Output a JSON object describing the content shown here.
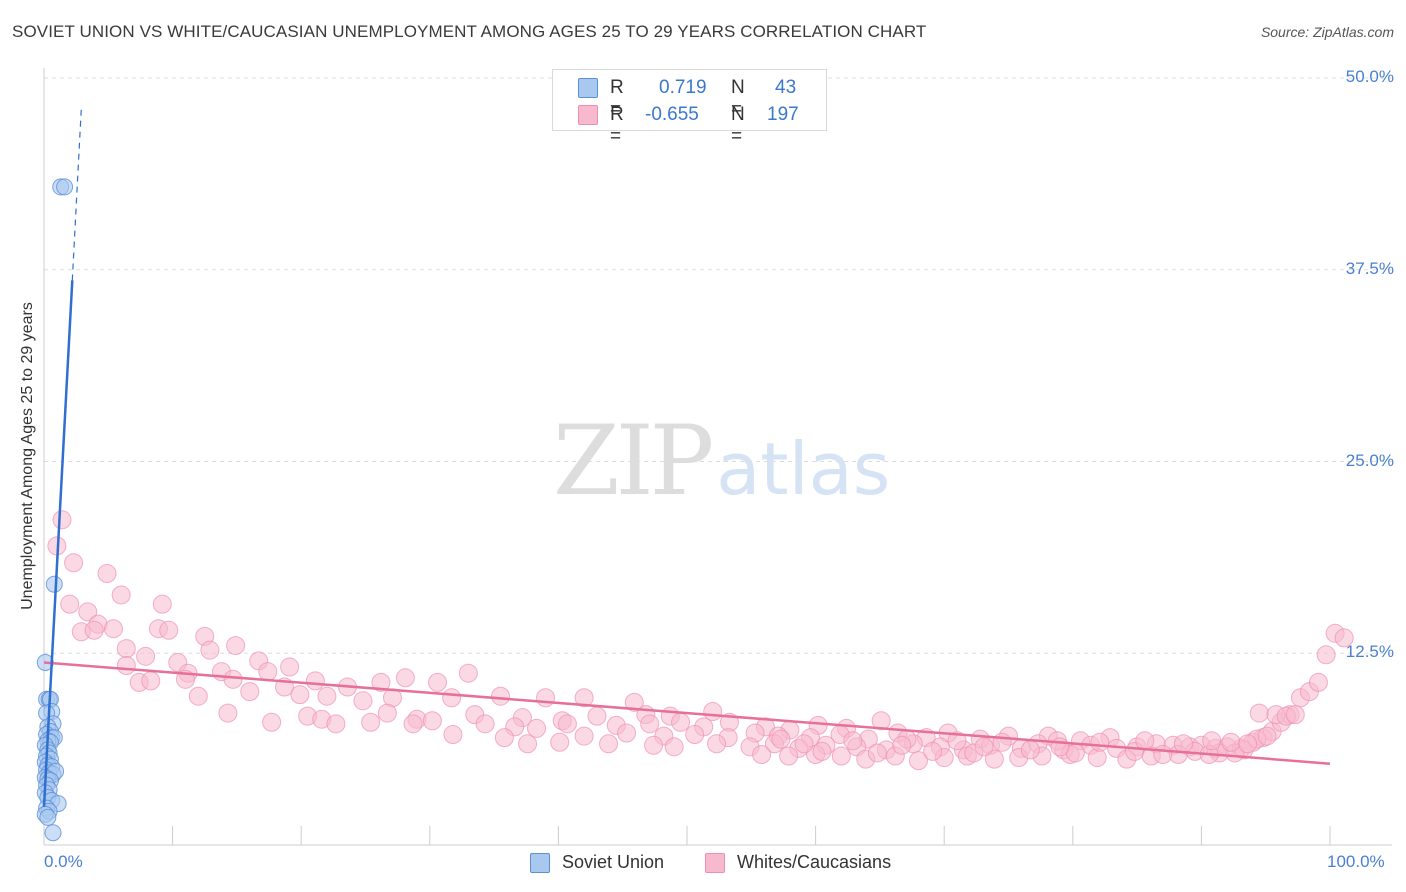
{
  "title": "SOVIET UNION VS WHITE/CAUCASIAN UNEMPLOYMENT AMONG AGES 25 TO 29 YEARS CORRELATION CHART",
  "source": "Source: ZipAtlas.com",
  "watermark": {
    "zip": "ZIP",
    "atlas": "atlas"
  },
  "legend": {
    "r_label": "R =",
    "n_label": "N =",
    "soviet": {
      "r": "0.719",
      "n": "43"
    },
    "white": {
      "r": "-0.655",
      "n": "197"
    }
  },
  "bottom_legend": {
    "soviet": "Soviet Union",
    "white": "Whites/Caucasians"
  },
  "colors": {
    "soviet_fill": "#a9c8f0",
    "soviet_stroke": "#5b8fd6",
    "soviet_line": "#2f6fd0",
    "white_fill": "#f7b9ce",
    "white_stroke": "#ef8fb0",
    "white_line": "#e6709a",
    "tick_text": "#4a7fd0",
    "grid": "#dddddd"
  },
  "chart_data": {
    "type": "scatter",
    "title": "SOVIET UNION VS WHITE/CAUCASIAN UNEMPLOYMENT AMONG AGES 25 TO 29 YEARS CORRELATION CHART",
    "xlabel": "",
    "ylabel": "Unemployment Among Ages 25 to 29 years",
    "xlim": [
      0,
      100
    ],
    "ylim": [
      0,
      50
    ],
    "x_tick_labels": [
      "0.0%",
      "100.0%"
    ],
    "y_ticks": [
      12.5,
      25.0,
      37.5,
      50.0
    ],
    "y_tick_labels": [
      "12.5%",
      "25.0%",
      "37.5%",
      "50.0%"
    ],
    "grid": true,
    "series": [
      {
        "name": "Soviet Union",
        "r": 0.719,
        "n": 43,
        "trend": {
          "x": [
            0.0,
            2.2
          ],
          "y": [
            2.5,
            36.8
          ],
          "dashed_to": [
            2.9,
            48.0
          ]
        },
        "points": [
          [
            1.3,
            42.9
          ],
          [
            1.6,
            42.9
          ],
          [
            0.8,
            17.0
          ],
          [
            0.1,
            11.9
          ],
          [
            0.2,
            9.5
          ],
          [
            0.4,
            9.5
          ],
          [
            0.5,
            9.5
          ],
          [
            0.6,
            8.7
          ],
          [
            0.2,
            8.6
          ],
          [
            0.7,
            7.9
          ],
          [
            0.3,
            7.7
          ],
          [
            0.5,
            7.4
          ],
          [
            0.2,
            7.2
          ],
          [
            0.6,
            7.0
          ],
          [
            0.8,
            7.0
          ],
          [
            0.3,
            6.8
          ],
          [
            0.5,
            6.7
          ],
          [
            0.1,
            6.5
          ],
          [
            0.3,
            6.2
          ],
          [
            0.4,
            6.0
          ],
          [
            0.2,
            5.8
          ],
          [
            0.5,
            5.6
          ],
          [
            0.1,
            5.4
          ],
          [
            0.3,
            5.2
          ],
          [
            0.6,
            5.1
          ],
          [
            0.2,
            4.9
          ],
          [
            0.4,
            4.7
          ],
          [
            0.7,
            4.6
          ],
          [
            0.9,
            4.8
          ],
          [
            0.1,
            4.4
          ],
          [
            0.3,
            4.3
          ],
          [
            0.5,
            4.2
          ],
          [
            0.2,
            3.9
          ],
          [
            0.4,
            3.6
          ],
          [
            0.1,
            3.4
          ],
          [
            0.3,
            3.1
          ],
          [
            0.6,
            2.9
          ],
          [
            1.1,
            2.7
          ],
          [
            0.2,
            2.4
          ],
          [
            0.4,
            2.2
          ],
          [
            0.1,
            2.0
          ],
          [
            0.3,
            1.8
          ],
          [
            0.7,
            0.8
          ]
        ]
      },
      {
        "name": "Whites/Caucasians",
        "r": -0.655,
        "n": 197,
        "trend": {
          "x": [
            0,
            100
          ],
          "y": [
            11.9,
            5.3
          ]
        },
        "points": [
          [
            1.4,
            21.2
          ],
          [
            1.0,
            19.5
          ],
          [
            2.3,
            18.4
          ],
          [
            4.9,
            17.7
          ],
          [
            2.0,
            15.7
          ],
          [
            6.0,
            16.3
          ],
          [
            9.2,
            15.7
          ],
          [
            3.4,
            15.2
          ],
          [
            4.2,
            14.4
          ],
          [
            2.9,
            13.9
          ],
          [
            3.9,
            14.0
          ],
          [
            5.4,
            14.1
          ],
          [
            8.9,
            14.1
          ],
          [
            9.7,
            14.0
          ],
          [
            12.5,
            13.6
          ],
          [
            6.4,
            12.8
          ],
          [
            12.9,
            12.7
          ],
          [
            14.9,
            13.0
          ],
          [
            7.9,
            12.3
          ],
          [
            10.4,
            11.9
          ],
          [
            16.7,
            12.0
          ],
          [
            6.4,
            11.7
          ],
          [
            11.2,
            11.2
          ],
          [
            13.8,
            11.3
          ],
          [
            17.4,
            11.3
          ],
          [
            7.4,
            10.6
          ],
          [
            8.3,
            10.7
          ],
          [
            11.0,
            10.8
          ],
          [
            14.7,
            10.8
          ],
          [
            19.1,
            11.6
          ],
          [
            21.1,
            10.7
          ],
          [
            26.2,
            10.6
          ],
          [
            28.1,
            10.9
          ],
          [
            30.6,
            10.6
          ],
          [
            33.0,
            11.2
          ],
          [
            18.7,
            10.3
          ],
          [
            23.6,
            10.3
          ],
          [
            16.0,
            10.0
          ],
          [
            19.9,
            9.8
          ],
          [
            12.0,
            9.7
          ],
          [
            22.0,
            9.7
          ],
          [
            24.8,
            9.4
          ],
          [
            27.1,
            9.6
          ],
          [
            31.7,
            9.6
          ],
          [
            35.5,
            9.7
          ],
          [
            39.0,
            9.6
          ],
          [
            42.0,
            9.6
          ],
          [
            45.9,
            9.3
          ],
          [
            14.3,
            8.6
          ],
          [
            20.5,
            8.4
          ],
          [
            21.6,
            8.2
          ],
          [
            26.7,
            8.6
          ],
          [
            29.0,
            8.2
          ],
          [
            33.5,
            8.5
          ],
          [
            37.2,
            8.3
          ],
          [
            40.3,
            8.1
          ],
          [
            43.0,
            8.4
          ],
          [
            46.8,
            8.5
          ],
          [
            48.7,
            8.4
          ],
          [
            52.0,
            8.7
          ],
          [
            17.7,
            8.0
          ],
          [
            22.7,
            7.9
          ],
          [
            25.4,
            8.0
          ],
          [
            28.7,
            7.9
          ],
          [
            30.2,
            8.1
          ],
          [
            34.3,
            7.9
          ],
          [
            36.6,
            7.7
          ],
          [
            38.3,
            7.6
          ],
          [
            40.7,
            7.9
          ],
          [
            44.5,
            7.8
          ],
          [
            47.1,
            7.9
          ],
          [
            49.5,
            8.0
          ],
          [
            51.3,
            7.7
          ],
          [
            53.3,
            8.0
          ],
          [
            56.1,
            7.7
          ],
          [
            58.0,
            7.5
          ],
          [
            60.2,
            7.8
          ],
          [
            62.4,
            7.6
          ],
          [
            65.1,
            8.1
          ],
          [
            31.8,
            7.2
          ],
          [
            35.8,
            7.0
          ],
          [
            42.0,
            7.1
          ],
          [
            45.3,
            7.3
          ],
          [
            48.2,
            7.1
          ],
          [
            50.6,
            7.2
          ],
          [
            53.2,
            7.0
          ],
          [
            55.3,
            7.3
          ],
          [
            57.1,
            7.1
          ],
          [
            59.6,
            7.0
          ],
          [
            61.9,
            7.2
          ],
          [
            64.1,
            6.9
          ],
          [
            66.4,
            7.3
          ],
          [
            68.6,
            7.0
          ],
          [
            70.3,
            7.3
          ],
          [
            72.8,
            6.9
          ],
          [
            75.0,
            7.1
          ],
          [
            78.1,
            7.1
          ],
          [
            80.6,
            6.8
          ],
          [
            82.9,
            7.0
          ],
          [
            37.6,
            6.6
          ],
          [
            40.1,
            6.7
          ],
          [
            43.9,
            6.6
          ],
          [
            47.4,
            6.5
          ],
          [
            49.0,
            6.4
          ],
          [
            52.3,
            6.6
          ],
          [
            54.9,
            6.4
          ],
          [
            56.8,
            6.6
          ],
          [
            58.7,
            6.3
          ],
          [
            60.8,
            6.5
          ],
          [
            63.2,
            6.4
          ],
          [
            65.5,
            6.2
          ],
          [
            67.6,
            6.6
          ],
          [
            69.7,
            6.4
          ],
          [
            71.5,
            6.2
          ],
          [
            73.6,
            6.5
          ],
          [
            76.0,
            6.3
          ],
          [
            77.3,
            6.6
          ],
          [
            79.3,
            6.2
          ],
          [
            81.4,
            6.5
          ],
          [
            83.4,
            6.3
          ],
          [
            85.0,
            6.4
          ],
          [
            86.5,
            6.6
          ],
          [
            87.8,
            6.5
          ],
          [
            89.1,
            6.4
          ],
          [
            90.0,
            6.5
          ],
          [
            91.1,
            6.3
          ],
          [
            92.0,
            6.4
          ],
          [
            93.1,
            6.3
          ],
          [
            94.0,
            6.7
          ],
          [
            94.8,
            7.0
          ],
          [
            95.5,
            7.4
          ],
          [
            96.2,
            8.0
          ],
          [
            96.9,
            8.5
          ],
          [
            97.7,
            9.6
          ],
          [
            98.4,
            10.0
          ],
          [
            99.1,
            10.6
          ],
          [
            99.7,
            12.4
          ],
          [
            100.4,
            13.8
          ],
          [
            101.1,
            13.5
          ],
          [
            55.8,
            5.9
          ],
          [
            57.9,
            5.8
          ],
          [
            60.0,
            5.9
          ],
          [
            62.0,
            5.8
          ],
          [
            63.9,
            5.6
          ],
          [
            66.2,
            5.8
          ],
          [
            68.0,
            5.5
          ],
          [
            70.0,
            5.7
          ],
          [
            71.8,
            5.8
          ],
          [
            73.9,
            5.6
          ],
          [
            75.8,
            5.7
          ],
          [
            77.6,
            5.8
          ],
          [
            79.8,
            5.9
          ],
          [
            81.9,
            5.7
          ],
          [
            84.2,
            5.6
          ],
          [
            86.1,
            5.8
          ],
          [
            88.2,
            5.9
          ],
          [
            89.5,
            6.1
          ],
          [
            91.4,
            6.0
          ],
          [
            93.3,
            6.2
          ],
          [
            60.5,
            6.1
          ],
          [
            64.8,
            6.0
          ],
          [
            69.1,
            6.1
          ],
          [
            72.3,
            6.0
          ],
          [
            76.7,
            6.2
          ],
          [
            80.2,
            6.0
          ],
          [
            84.8,
            6.1
          ],
          [
            87.0,
            5.9
          ],
          [
            90.6,
            5.9
          ],
          [
            92.6,
            6.0
          ],
          [
            94.5,
            8.6
          ],
          [
            95.8,
            8.5
          ],
          [
            96.6,
            8.4
          ],
          [
            97.3,
            8.5
          ],
          [
            94.3,
            6.9
          ],
          [
            95.1,
            7.1
          ],
          [
            57.3,
            6.9
          ],
          [
            62.9,
            6.8
          ],
          [
            67.1,
            6.9
          ],
          [
            71.0,
            6.8
          ],
          [
            74.5,
            6.7
          ],
          [
            78.8,
            6.8
          ],
          [
            82.1,
            6.7
          ],
          [
            85.6,
            6.8
          ],
          [
            88.6,
            6.6
          ],
          [
            90.8,
            6.8
          ],
          [
            92.3,
            6.7
          ],
          [
            93.6,
            6.6
          ],
          [
            59.1,
            6.6
          ],
          [
            66.7,
            6.5
          ],
          [
            73.1,
            6.4
          ],
          [
            79.0,
            6.4
          ]
        ]
      }
    ]
  }
}
